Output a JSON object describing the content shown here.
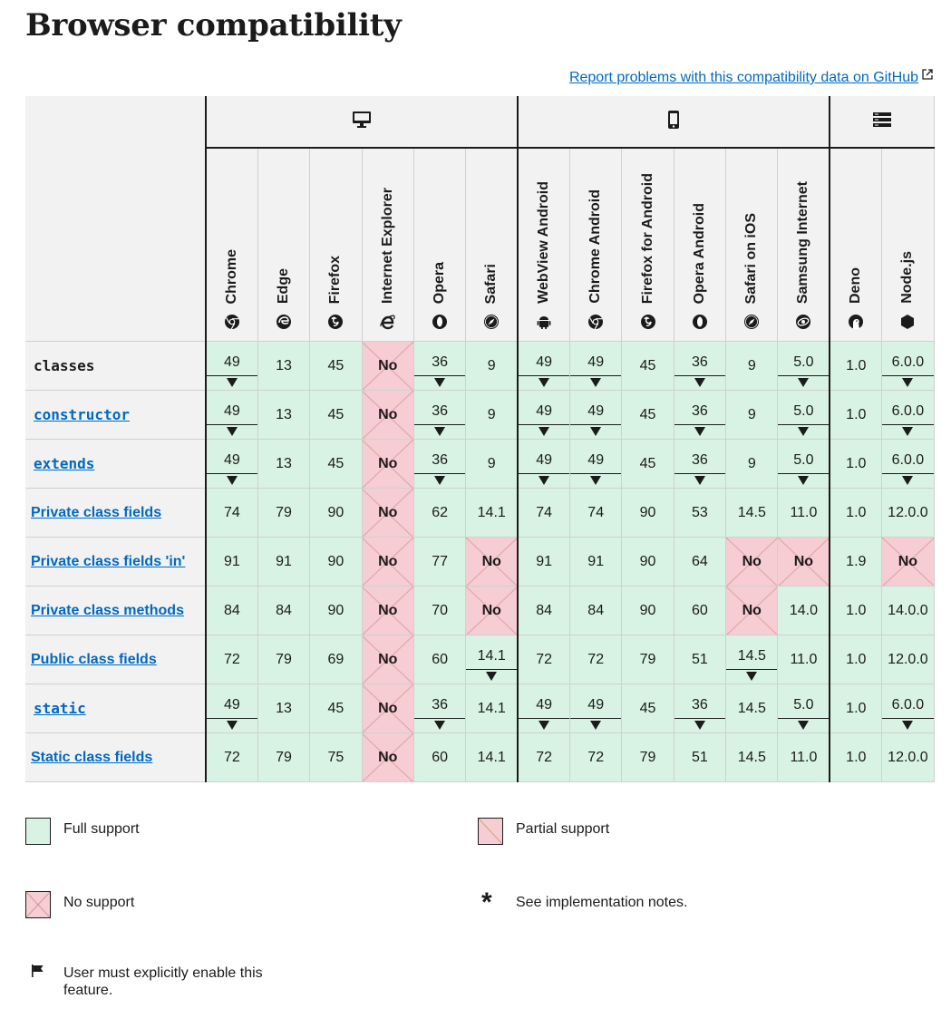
{
  "title": "Browser compatibility",
  "report_link": "Report problems with this compatibility data on GitHub",
  "platform_icons": [
    "desktop-icon",
    "mobile-icon",
    "server-icon"
  ],
  "browsers": [
    {
      "name": "Chrome",
      "icon": "chrome-icon"
    },
    {
      "name": "Edge",
      "icon": "edge-icon"
    },
    {
      "name": "Firefox",
      "icon": "firefox-icon"
    },
    {
      "name": "Internet Explorer",
      "icon": "internet-explorer-icon"
    },
    {
      "name": "Opera",
      "icon": "opera-icon"
    },
    {
      "name": "Safari",
      "icon": "safari-icon"
    },
    {
      "name": "WebView Android",
      "icon": "android-icon"
    },
    {
      "name": "Chrome Android",
      "icon": "chrome-icon"
    },
    {
      "name": "Firefox for Android",
      "icon": "firefox-icon"
    },
    {
      "name": "Opera Android",
      "icon": "opera-icon"
    },
    {
      "name": "Safari on iOS",
      "icon": "safari-icon"
    },
    {
      "name": "Samsung Internet",
      "icon": "samsung-icon"
    },
    {
      "name": "Deno",
      "icon": "deno-icon"
    },
    {
      "name": "Node.js",
      "icon": "nodejs-icon"
    }
  ],
  "rows": [
    {
      "feature": "classes",
      "code": true,
      "link": false,
      "cells": [
        [
          "49",
          1,
          1
        ],
        [
          "13",
          1,
          0
        ],
        [
          "45",
          1,
          0
        ],
        [
          "No",
          0,
          0
        ],
        [
          "36",
          1,
          1
        ],
        [
          "9",
          1,
          0
        ],
        [
          "49",
          1,
          1
        ],
        [
          "49",
          1,
          1
        ],
        [
          "45",
          1,
          0
        ],
        [
          "36",
          1,
          1
        ],
        [
          "9",
          1,
          0
        ],
        [
          "5.0",
          1,
          1
        ],
        [
          "1.0",
          1,
          0
        ],
        [
          "6.0.0",
          1,
          1
        ]
      ]
    },
    {
      "feature": "constructor",
      "code": true,
      "link": true,
      "cells": [
        [
          "49",
          1,
          1
        ],
        [
          "13",
          1,
          0
        ],
        [
          "45",
          1,
          0
        ],
        [
          "No",
          0,
          0
        ],
        [
          "36",
          1,
          1
        ],
        [
          "9",
          1,
          0
        ],
        [
          "49",
          1,
          1
        ],
        [
          "49",
          1,
          1
        ],
        [
          "45",
          1,
          0
        ],
        [
          "36",
          1,
          1
        ],
        [
          "9",
          1,
          0
        ],
        [
          "5.0",
          1,
          1
        ],
        [
          "1.0",
          1,
          0
        ],
        [
          "6.0.0",
          1,
          1
        ]
      ]
    },
    {
      "feature": "extends",
      "code": true,
      "link": true,
      "cells": [
        [
          "49",
          1,
          1
        ],
        [
          "13",
          1,
          0
        ],
        [
          "45",
          1,
          0
        ],
        [
          "No",
          0,
          0
        ],
        [
          "36",
          1,
          1
        ],
        [
          "9",
          1,
          0
        ],
        [
          "49",
          1,
          1
        ],
        [
          "49",
          1,
          1
        ],
        [
          "45",
          1,
          0
        ],
        [
          "36",
          1,
          1
        ],
        [
          "9",
          1,
          0
        ],
        [
          "5.0",
          1,
          1
        ],
        [
          "1.0",
          1,
          0
        ],
        [
          "6.0.0",
          1,
          1
        ]
      ]
    },
    {
      "feature": "Private class fields",
      "code": false,
      "link": true,
      "cells": [
        [
          "74",
          1,
          0
        ],
        [
          "79",
          1,
          0
        ],
        [
          "90",
          1,
          0
        ],
        [
          "No",
          0,
          0
        ],
        [
          "62",
          1,
          0
        ],
        [
          "14.1",
          1,
          0
        ],
        [
          "74",
          1,
          0
        ],
        [
          "74",
          1,
          0
        ],
        [
          "90",
          1,
          0
        ],
        [
          "53",
          1,
          0
        ],
        [
          "14.5",
          1,
          0
        ],
        [
          "11.0",
          1,
          0
        ],
        [
          "1.0",
          1,
          0
        ],
        [
          "12.0.0",
          1,
          0
        ]
      ]
    },
    {
      "feature": "Private class fields 'in'",
      "code": false,
      "link": true,
      "cells": [
        [
          "91",
          1,
          0
        ],
        [
          "91",
          1,
          0
        ],
        [
          "90",
          1,
          0
        ],
        [
          "No",
          0,
          0
        ],
        [
          "77",
          1,
          0
        ],
        [
          "No",
          0,
          0
        ],
        [
          "91",
          1,
          0
        ],
        [
          "91",
          1,
          0
        ],
        [
          "90",
          1,
          0
        ],
        [
          "64",
          1,
          0
        ],
        [
          "No",
          0,
          0
        ],
        [
          "No",
          0,
          0
        ],
        [
          "1.9",
          1,
          0
        ],
        [
          "No",
          0,
          0
        ]
      ]
    },
    {
      "feature": "Private class methods",
      "code": false,
      "link": true,
      "cells": [
        [
          "84",
          1,
          0
        ],
        [
          "84",
          1,
          0
        ],
        [
          "90",
          1,
          0
        ],
        [
          "No",
          0,
          0
        ],
        [
          "70",
          1,
          0
        ],
        [
          "No",
          0,
          0
        ],
        [
          "84",
          1,
          0
        ],
        [
          "84",
          1,
          0
        ],
        [
          "90",
          1,
          0
        ],
        [
          "60",
          1,
          0
        ],
        [
          "No",
          0,
          0
        ],
        [
          "14.0",
          1,
          0
        ],
        [
          "1.0",
          1,
          0
        ],
        [
          "14.0.0",
          1,
          0
        ]
      ]
    },
    {
      "feature": "Public class fields",
      "code": false,
      "link": true,
      "cells": [
        [
          "72",
          1,
          0
        ],
        [
          "79",
          1,
          0
        ],
        [
          "69",
          1,
          0
        ],
        [
          "No",
          0,
          0
        ],
        [
          "60",
          1,
          0
        ],
        [
          "14.1",
          1,
          1
        ],
        [
          "72",
          1,
          0
        ],
        [
          "72",
          1,
          0
        ],
        [
          "79",
          1,
          0
        ],
        [
          "51",
          1,
          0
        ],
        [
          "14.5",
          1,
          1
        ],
        [
          "11.0",
          1,
          0
        ],
        [
          "1.0",
          1,
          0
        ],
        [
          "12.0.0",
          1,
          0
        ]
      ]
    },
    {
      "feature": "static",
      "code": true,
      "link": true,
      "cells": [
        [
          "49",
          1,
          1
        ],
        [
          "13",
          1,
          0
        ],
        [
          "45",
          1,
          0
        ],
        [
          "No",
          0,
          0
        ],
        [
          "36",
          1,
          1
        ],
        [
          "14.1",
          1,
          0
        ],
        [
          "49",
          1,
          1
        ],
        [
          "49",
          1,
          1
        ],
        [
          "45",
          1,
          0
        ],
        [
          "36",
          1,
          1
        ],
        [
          "14.5",
          1,
          0
        ],
        [
          "5.0",
          1,
          1
        ],
        [
          "1.0",
          1,
          0
        ],
        [
          "6.0.0",
          1,
          1
        ]
      ]
    },
    {
      "feature": "Static class fields",
      "code": false,
      "link": true,
      "cells": [
        [
          "72",
          1,
          0
        ],
        [
          "79",
          1,
          0
        ],
        [
          "75",
          1,
          0
        ],
        [
          "No",
          0,
          0
        ],
        [
          "60",
          1,
          0
        ],
        [
          "14.1",
          1,
          0
        ],
        [
          "72",
          1,
          0
        ],
        [
          "72",
          1,
          0
        ],
        [
          "79",
          1,
          0
        ],
        [
          "51",
          1,
          0
        ],
        [
          "14.5",
          1,
          0
        ],
        [
          "11.0",
          1,
          0
        ],
        [
          "1.0",
          1,
          0
        ],
        [
          "12.0.0",
          1,
          0
        ]
      ]
    }
  ],
  "legend": {
    "full": "Full support",
    "partial": "Partial support",
    "none": "No support",
    "notes": "See implementation notes.",
    "flag": "User must explicitly enable this feature."
  },
  "colors": {
    "full": "#d8f3e3",
    "none": "#f6cdd2",
    "link": "#0069c2"
  }
}
